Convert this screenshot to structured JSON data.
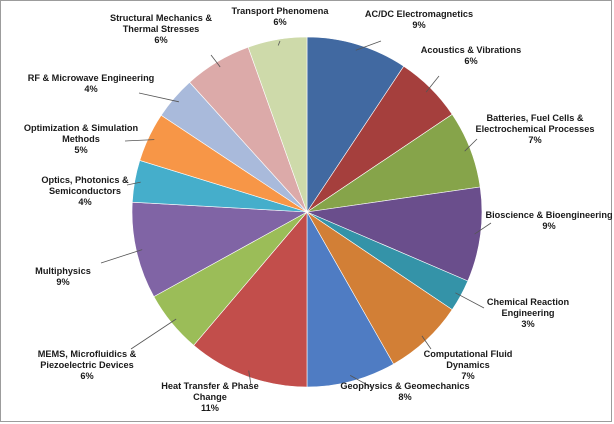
{
  "chart_data": {
    "type": "pie",
    "title": "",
    "start_angle_deg": 0,
    "direction": "clockwise",
    "legend": "none",
    "slices": [
      {
        "label": "AC/DC Electromagnetics",
        "percent_label": "9%",
        "value": 9.4,
        "color": "#4169A1"
      },
      {
        "label": "Acoustics & Vibrations",
        "percent_label": "6%",
        "value": 6.3,
        "color": "#A53F3D"
      },
      {
        "label": "Batteries, Fuel Cells & Electrochemical Processes",
        "percent_label": "7%",
        "value": 7.2,
        "color": "#86A44A"
      },
      {
        "label": "Bioscience & Bioengineering",
        "percent_label": "9%",
        "value": 8.8,
        "color": "#6A4E8C"
      },
      {
        "label": "Chemical Reaction Engineering",
        "percent_label": "3%",
        "value": 3.0,
        "color": "#3493A8"
      },
      {
        "label": "Computational Fluid Dynamics",
        "percent_label": "7%",
        "value": 7.4,
        "color": "#D27F36"
      },
      {
        "label": "Geophysics & Geomechanics",
        "percent_label": "8%",
        "value": 8.3,
        "color": "#4F7CC3"
      },
      {
        "label": "Heat Transfer & Phase Change",
        "percent_label": "11%",
        "value": 11.3,
        "color": "#C24E4B"
      },
      {
        "label": "MEMS, Microfluidics & Piezoelectric Devices",
        "percent_label": "6%",
        "value": 5.8,
        "color": "#9BBD58"
      },
      {
        "label": "Multiphysics",
        "percent_label": "9%",
        "value": 9.0,
        "color": "#8064A5"
      },
      {
        "label": "Optics, Photonics & Semiconductors",
        "percent_label": "4%",
        "value": 3.9,
        "color": "#45AECB"
      },
      {
        "label": "Optimization & Simulation Methods",
        "percent_label": "5%",
        "value": 4.6,
        "color": "#F79647"
      },
      {
        "label": "RF & Microwave Engineering",
        "percent_label": "4%",
        "value": 4.0,
        "color": "#A9BADB"
      },
      {
        "label": "Structural Mechanics & Thermal Stresses",
        "percent_label": "6%",
        "value": 6.3,
        "color": "#DCAAA9"
      },
      {
        "label": "Transport Phenomena",
        "percent_label": "6%",
        "value": 5.5,
        "color": "#CEDAAA"
      }
    ]
  },
  "label_lines": [
    [
      "AC/DC Electromagnetics",
      "9%"
    ],
    [
      "Acoustics & Vibrations",
      "6%"
    ],
    [
      "Batteries, Fuel Cells &",
      "Electrochemical Processes",
      "7%"
    ],
    [
      "Bioscience & Bioengineering",
      "9%"
    ],
    [
      "Chemical Reaction",
      "Engineering",
      "3%"
    ],
    [
      "Computational  Fluid",
      "Dynamics",
      "7%"
    ],
    [
      "Geophysics & Geomechanics",
      "8%"
    ],
    [
      "Heat Transfer & Phase",
      "Change",
      "11%"
    ],
    [
      "MEMS, Microfluidics &",
      "Piezoelectric Devices",
      "6%"
    ],
    [
      "Multiphysics",
      "9%"
    ],
    [
      "Optics, Photonics &",
      "Semiconductors",
      "4%"
    ],
    [
      "Optimization  & Simulation",
      "Methods",
      "5%"
    ],
    [
      "RF & Microwave Engineering",
      "4%"
    ],
    [
      "Structural Mechanics &",
      "Thermal Stresses",
      "6%"
    ],
    [
      "Transport  Phenomena",
      "6%"
    ]
  ]
}
